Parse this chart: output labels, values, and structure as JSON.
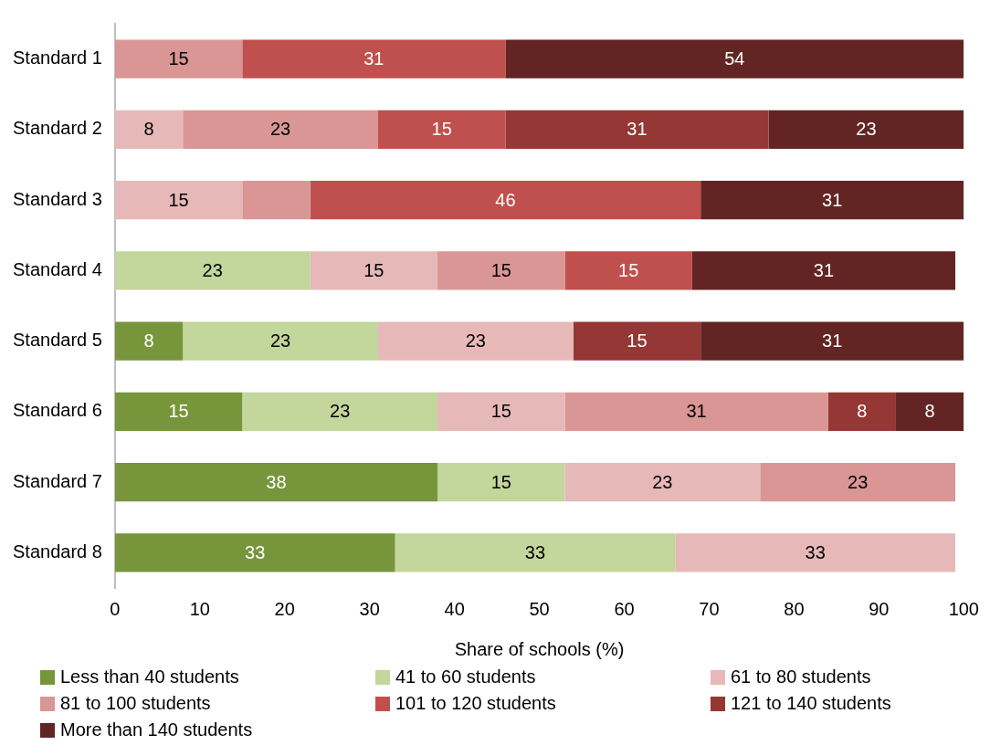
{
  "chart_data": {
    "type": "bar",
    "orientation": "horizontal",
    "stacked": true,
    "xlabel": "Share of schools (%)",
    "categories": [
      "Standard 1",
      "Standard 2",
      "Standard 3",
      "Standard 4",
      "Standard 5",
      "Standard 6",
      "Standard 7",
      "Standard 8"
    ],
    "xlim": [
      0,
      100
    ],
    "xticks": [
      0,
      10,
      20,
      30,
      40,
      50,
      60,
      70,
      80,
      90,
      100
    ],
    "grid": false,
    "legend": "bottom",
    "series": [
      {
        "name": "Less than 40 students",
        "color": "#77963b",
        "values": [
          null,
          null,
          null,
          null,
          8,
          15,
          38,
          33
        ],
        "value_labels": [
          null,
          null,
          null,
          null,
          "8",
          "15",
          "38",
          "33"
        ]
      },
      {
        "name": "41 to 60 students",
        "color": "#c3d69b",
        "values": [
          null,
          null,
          null,
          23,
          23,
          23,
          15,
          33
        ],
        "value_labels": [
          null,
          null,
          null,
          "23",
          "23",
          "23",
          "15",
          "33"
        ]
      },
      {
        "name": "61 to 80 students",
        "color": "#e6b9b8",
        "values": [
          null,
          8,
          15,
          15,
          23,
          15,
          23,
          33
        ],
        "value_labels": [
          null,
          "8",
          "15",
          "15",
          "23",
          "15",
          "23",
          "33"
        ]
      },
      {
        "name": "81 to 100 students",
        "color": "#d99694",
        "values": [
          15,
          23,
          8,
          15,
          null,
          31,
          23,
          null
        ],
        "value_labels": [
          "15",
          "23",
          null,
          "15",
          null,
          "31",
          "23",
          null
        ]
      },
      {
        "name": "101 to 120 students",
        "color": "#c0504d",
        "values": [
          31,
          15,
          46,
          15,
          null,
          null,
          null,
          null
        ],
        "value_labels": [
          "31",
          "15",
          "46",
          "15",
          null,
          null,
          null,
          null
        ]
      },
      {
        "name": "121 to 140 students",
        "color": "#953735",
        "values": [
          null,
          31,
          null,
          null,
          15,
          8,
          null,
          null
        ],
        "value_labels": [
          null,
          "31",
          null,
          null,
          "15",
          "8",
          null,
          null
        ]
      },
      {
        "name": "More than 140 students",
        "color": "#632523",
        "values": [
          54,
          23,
          31,
          31,
          31,
          8,
          null,
          null
        ],
        "value_labels": [
          "54",
          "23",
          "31",
          "31",
          "31",
          "8",
          null,
          null
        ]
      }
    ]
  }
}
